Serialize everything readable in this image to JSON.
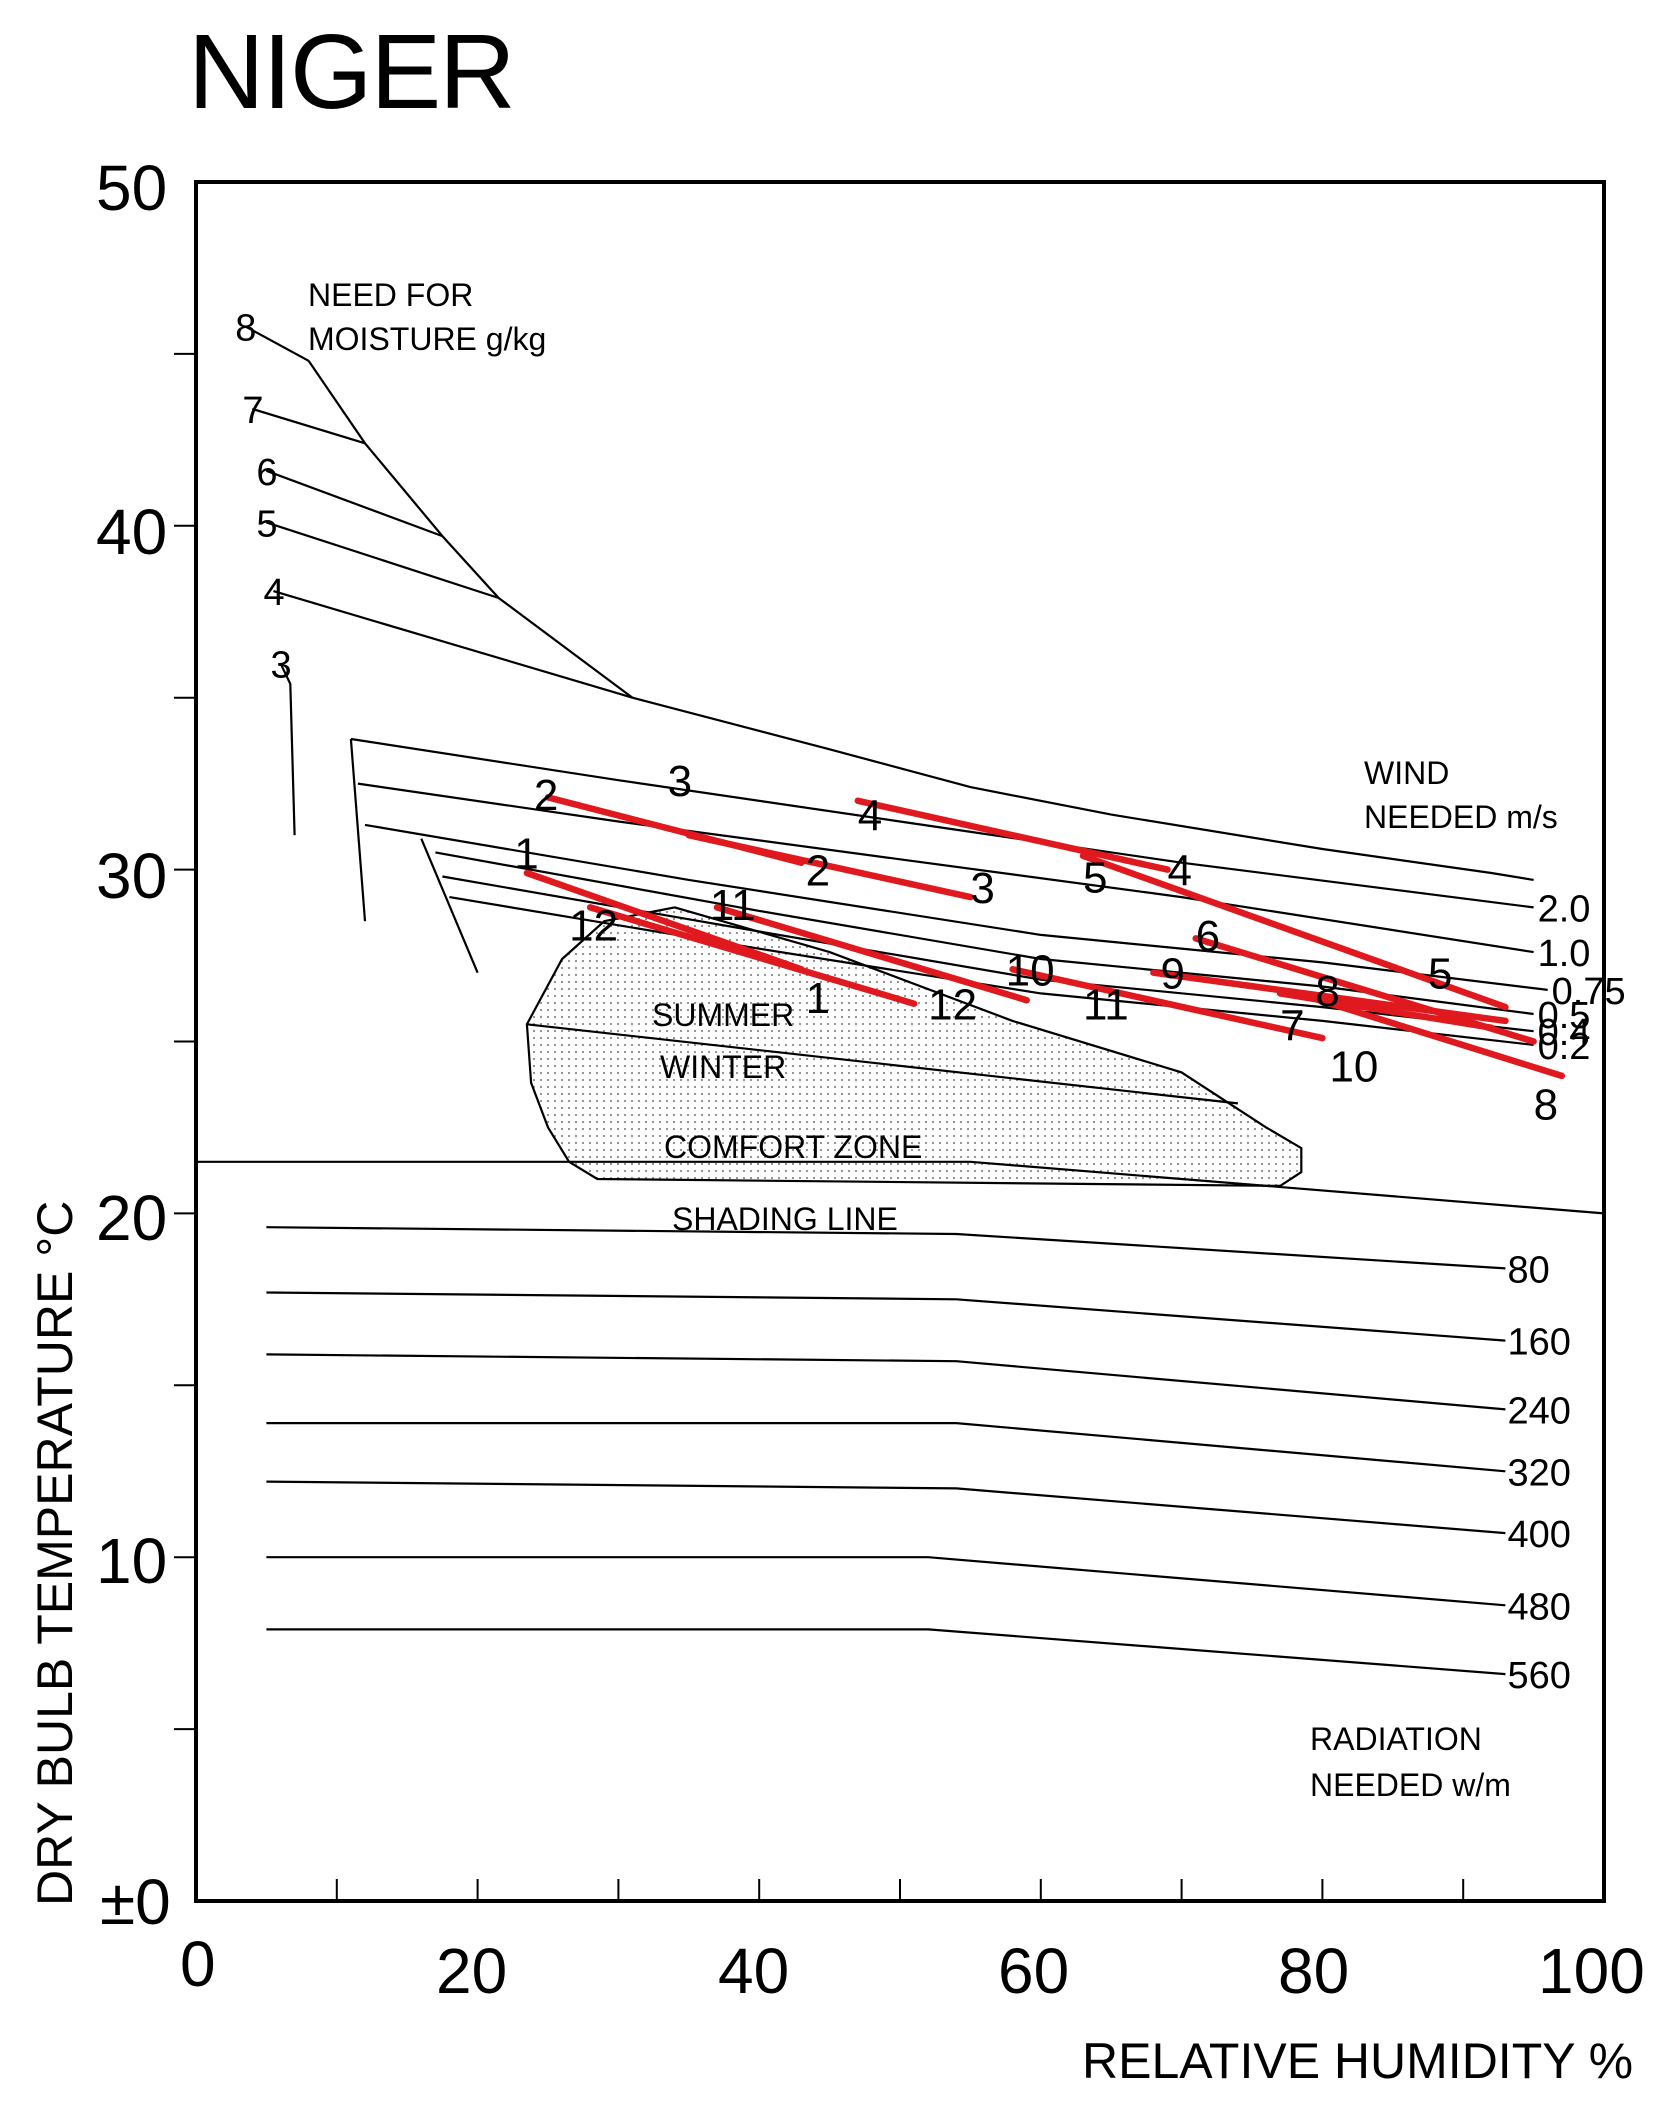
{
  "chart_data": {
    "type": "line",
    "title": "NIGER",
    "xlabel": "RELATIVE HUMIDITY %",
    "ylabel": "DRY BULB TEMPERATURE °C",
    "xlim": [
      0,
      100
    ],
    "ylim": [
      0,
      50
    ],
    "x_tick_labels": [
      "0",
      "20",
      "40",
      "60",
      "80",
      "100"
    ],
    "y_tick_labels": [
      "±0",
      "10",
      "20",
      "30",
      "40",
      "50"
    ],
    "annotations": {
      "moisture": "NEED FOR MOISTURE g/kg",
      "wind": "WIND NEEDED m/s",
      "radiation": "RADIATION NEEDED w/m",
      "summer": "SUMMER",
      "winter": "WINTER",
      "comfort_zone": "COMFORT ZONE",
      "shading_line": "SHADING LINE"
    },
    "moisture_lines": [
      {
        "label": "8",
        "points": [
          [
            3.5,
            45.8
          ],
          [
            8,
            44.8
          ]
        ]
      },
      {
        "label": "7",
        "points": [
          [
            4,
            43.4
          ],
          [
            12,
            42.4
          ]
        ]
      },
      {
        "label": "6",
        "points": [
          [
            5,
            41.6
          ],
          [
            17.5,
            39.7
          ]
        ]
      },
      {
        "label": "5",
        "points": [
          [
            5,
            40.1
          ],
          [
            21.5,
            37.9
          ]
        ]
      },
      {
        "label": "4",
        "points": [
          [
            5.5,
            38.1
          ],
          [
            31,
            35.0
          ],
          [
            45,
            33.5
          ],
          [
            55,
            32.4
          ],
          [
            65,
            31.6
          ],
          [
            80,
            30.6
          ],
          [
            92,
            29.9
          ],
          [
            95,
            29.7
          ]
        ]
      },
      {
        "label": "3",
        "points": [
          [
            6,
            36.0
          ],
          [
            6.7,
            35.4
          ],
          [
            7,
            31.0
          ]
        ]
      }
    ],
    "moisture_boundary": [
      [
        8,
        44.8
      ],
      [
        12,
        42.4
      ],
      [
        17.5,
        39.7
      ],
      [
        21.5,
        37.9
      ],
      [
        31,
        35.0
      ]
    ],
    "wind_lines": [
      {
        "label": "2.0",
        "points": [
          [
            11,
            33.8
          ],
          [
            30,
            32.6
          ],
          [
            50,
            31.4
          ],
          [
            70,
            30.2
          ],
          [
            95,
            28.9
          ]
        ]
      },
      {
        "label": "1.0",
        "points": [
          [
            11.5,
            32.5
          ],
          [
            30,
            31.4
          ],
          [
            50,
            30.3
          ],
          [
            70,
            29.2
          ],
          [
            95,
            27.6
          ]
        ]
      },
      {
        "label": "0.75",
        "points": [
          [
            12,
            31.3
          ],
          [
            35,
            29.7
          ],
          [
            60,
            28.1
          ],
          [
            80,
            27.3
          ],
          [
            96,
            26.5
          ]
        ]
      },
      {
        "label": "0.5",
        "points": [
          [
            17,
            30.5
          ],
          [
            40,
            28.8
          ],
          [
            60,
            27.4
          ],
          [
            80,
            26.6
          ],
          [
            95,
            25.8
          ]
        ]
      },
      {
        "label": "0.4",
        "points": [
          [
            17.5,
            29.8
          ],
          [
            40,
            28.2
          ],
          [
            60,
            26.8
          ],
          [
            80,
            26.0
          ],
          [
            95,
            25.3
          ]
        ]
      },
      {
        "label": "0.2",
        "points": [
          [
            18,
            29.2
          ],
          [
            40,
            27.7
          ],
          [
            60,
            26.4
          ],
          [
            80,
            25.6
          ],
          [
            95,
            24.9
          ]
        ]
      }
    ],
    "wind_verticals": [
      [
        [
          11,
          33.8
        ],
        [
          12,
          28.5
        ]
      ],
      [
        [
          16,
          30.9
        ],
        [
          20,
          27.0
        ]
      ]
    ],
    "comfort_zone": {
      "summer_winter_divider": [
        [
          23.5,
          25.5
        ],
        [
          74,
          23.2
        ]
      ],
      "outline_top": [
        [
          23.5,
          25.5
        ],
        [
          26,
          27.4
        ],
        [
          29,
          28.5
        ],
        [
          34,
          28.9
        ],
        [
          45,
          27.6
        ],
        [
          58,
          25.6
        ],
        [
          70,
          24.1
        ],
        [
          76,
          22.5
        ],
        [
          78.5,
          21.9
        ],
        [
          78.5,
          21.2
        ],
        [
          77,
          20.8
        ]
      ],
      "outline_bottom": [
        [
          23.5,
          25.5
        ],
        [
          23.8,
          23.8
        ],
        [
          25.0,
          22.5
        ],
        [
          26.5,
          21.5
        ],
        [
          28.5,
          21.0
        ]
      ]
    },
    "shading_line": [
      [
        0,
        21.5
      ],
      [
        55,
        21.5
      ],
      [
        100,
        20.0
      ]
    ],
    "radiation_lines": [
      {
        "label": "80",
        "points": [
          [
            5,
            19.6
          ],
          [
            54,
            19.4
          ],
          [
            93,
            18.4
          ]
        ]
      },
      {
        "label": "160",
        "points": [
          [
            5,
            17.7
          ],
          [
            54,
            17.5
          ],
          [
            93,
            16.3
          ]
        ]
      },
      {
        "label": "240",
        "points": [
          [
            5,
            15.9
          ],
          [
            54,
            15.7
          ],
          [
            93,
            14.3
          ]
        ]
      },
      {
        "label": "320",
        "points": [
          [
            5,
            13.9
          ],
          [
            54,
            13.9
          ],
          [
            93,
            12.5
          ]
        ]
      },
      {
        "label": "400",
        "points": [
          [
            5,
            12.2
          ],
          [
            54,
            12.0
          ],
          [
            93,
            10.7
          ]
        ]
      },
      {
        "label": "480",
        "points": [
          [
            5,
            10.0
          ],
          [
            52,
            10.0
          ],
          [
            93,
            8.6
          ]
        ]
      },
      {
        "label": "560",
        "points": [
          [
            5,
            7.9
          ],
          [
            52,
            7.9
          ],
          [
            93,
            6.6
          ]
        ]
      }
    ],
    "series": [
      {
        "name": "1",
        "points": [
          [
            23.5,
            29.9
          ],
          [
            43,
            27.1
          ]
        ],
        "start_label": "1",
        "end_label": "1"
      },
      {
        "name": "2",
        "points": [
          [
            25,
            32.1
          ],
          [
            43,
            30.2
          ]
        ],
        "start_label": "2",
        "end_label": "2"
      },
      {
        "name": "3",
        "points": [
          [
            35,
            31.0
          ],
          [
            55,
            29.2
          ]
        ],
        "start_label": "3",
        "end_label": "3"
      },
      {
        "name": "4",
        "points": [
          [
            47,
            32.0
          ],
          [
            69,
            30.0
          ]
        ],
        "start_label": "4",
        "end_label": "4"
      },
      {
        "name": "5",
        "points": [
          [
            63,
            30.4
          ],
          [
            93,
            26.0
          ]
        ],
        "start_label": "5",
        "end_label": "5"
      },
      {
        "name": "6",
        "points": [
          [
            71,
            28.0
          ],
          [
            95,
            25.0
          ]
        ],
        "start_label": "6",
        "end_label": "6"
      },
      {
        "name": "7",
        "points": [
          [
            77,
            26.4
          ],
          [
            92,
            25.4
          ]
        ],
        "start_label": "7",
        "end_label": "7"
      },
      {
        "name": "8",
        "points": [
          [
            79,
            26.3
          ],
          [
            97,
            24.0
          ]
        ],
        "start_label": "8",
        "end_label": "8"
      },
      {
        "name": "9",
        "points": [
          [
            68,
            27.0
          ],
          [
            93,
            25.6
          ]
        ],
        "start_label": "9",
        "end_label": "9"
      },
      {
        "name": "10",
        "points": [
          [
            58,
            27.1
          ],
          [
            80,
            25.1
          ]
        ],
        "start_label": "10",
        "end_label": "10"
      },
      {
        "name": "11",
        "points": [
          [
            37,
            28.9
          ],
          [
            59,
            26.2
          ]
        ],
        "start_label": "11",
        "end_label": "11"
      },
      {
        "name": "12",
        "points": [
          [
            28,
            28.9
          ],
          [
            51,
            26.1
          ]
        ],
        "start_label": "12",
        "end_label": "12"
      }
    ],
    "month_label_positions": [
      {
        "text": "1",
        "at": [
          22.6,
          30.5
        ]
      },
      {
        "text": "2",
        "at": [
          24,
          32.2
        ]
      },
      {
        "text": "3",
        "at": [
          33.5,
          32.6
        ]
      },
      {
        "text": "4",
        "at": [
          47,
          31.6
        ]
      },
      {
        "text": "5",
        "at": [
          63,
          29.8
        ]
      },
      {
        "text": "6",
        "at": [
          71,
          28.1
        ]
      },
      {
        "text": "7",
        "at": [
          77,
          25.5
        ]
      },
      {
        "text": "8",
        "at": [
          79.5,
          26.5
        ]
      },
      {
        "text": "9",
        "at": [
          68.5,
          27.0
        ]
      },
      {
        "text": "10",
        "at": [
          57.5,
          27.1
        ]
      },
      {
        "text": "11",
        "at": [
          36.5,
          29.0
        ]
      },
      {
        "text": "12",
        "at": [
          26.5,
          28.4
        ]
      },
      {
        "text": "1",
        "at": [
          43.3,
          26.3
        ]
      },
      {
        "text": "2",
        "at": [
          43.3,
          30.0
        ]
      },
      {
        "text": "3",
        "at": [
          55,
          29.5
        ]
      },
      {
        "text": "4",
        "at": [
          69,
          30.0
        ]
      },
      {
        "text": "5",
        "at": [
          87.5,
          27.0
        ]
      },
      {
        "text": "10",
        "at": [
          80.5,
          24.3
        ]
      },
      {
        "text": "11",
        "at": [
          63,
          26.1
        ]
      },
      {
        "text": "12",
        "at": [
          52,
          26.1
        ]
      },
      {
        "text": "8",
        "at": [
          95,
          23.2
        ]
      }
    ]
  }
}
